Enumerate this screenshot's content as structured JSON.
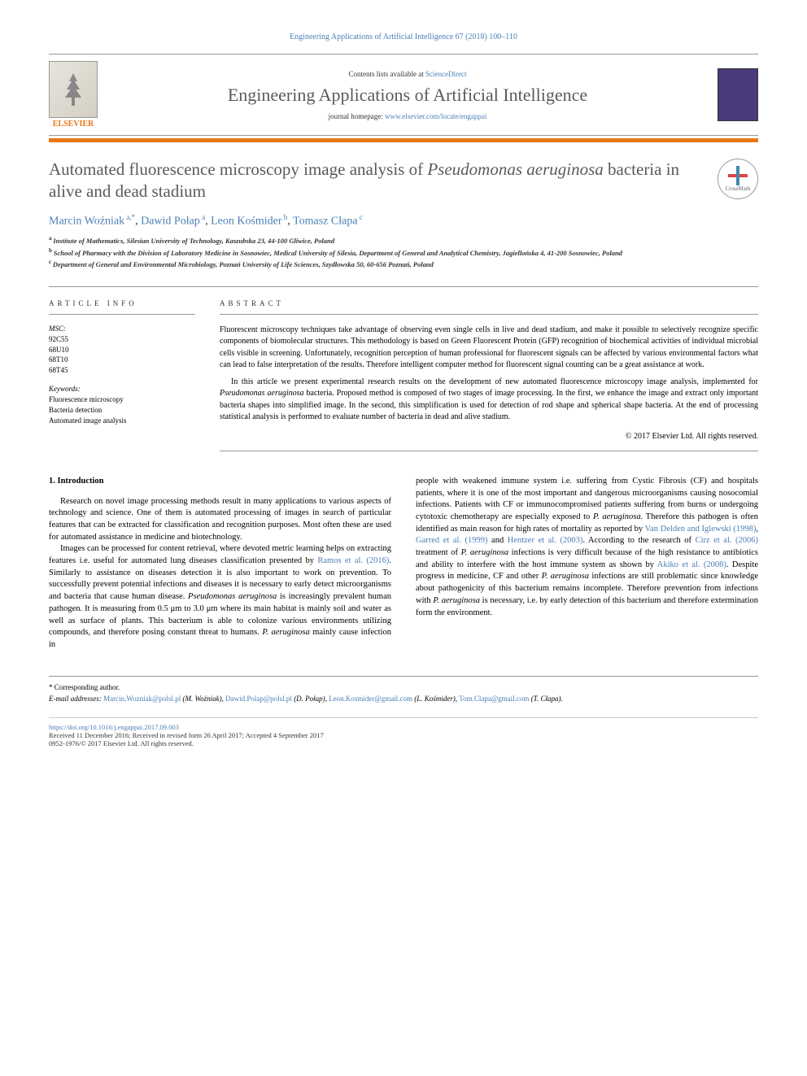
{
  "citation": "Engineering Applications of Artificial Intelligence 67 (2018) 100–110",
  "header": {
    "contents_text": "Contents lists available at ",
    "sciencedirect": "ScienceDirect",
    "journal_name": "Engineering Applications of Artificial Intelligence",
    "homepage_label": "journal homepage: ",
    "homepage_url": "www.elsevier.com/locate/engappai",
    "elsevier_brand": "ELSEVIER",
    "crossmark_label": "CrossMark"
  },
  "title": {
    "pre": "Automated fluorescence microscopy image analysis of ",
    "italic": "Pseudomonas aeruginosa",
    "post": " bacteria in alive and dead stadium"
  },
  "authors": [
    {
      "name": "Marcin Woźniak",
      "sup": "a,*"
    },
    {
      "name": "Dawid Połap",
      "sup": "a"
    },
    {
      "name": "Leon Kośmider",
      "sup": "b"
    },
    {
      "name": "Tomasz Cłapa",
      "sup": "c"
    }
  ],
  "affiliations": [
    {
      "marker": "a",
      "text": "Institute of Mathematics, Silesian University of Technology, Kaszubska 23, 44-100 Gliwice, Poland"
    },
    {
      "marker": "b",
      "text": "School of Pharmacy with the Division of Laboratory Medicine in Sosnowiec, Medical University of Silesia, Department of General and Analytical Chemistry, Jagiellońska 4, 41-200 Sosnowiec, Poland"
    },
    {
      "marker": "c",
      "text": "Department of General and Environmental Microbiology, Poznań University of Life Sciences, Szydłowska 50, 60-656 Poznań, Poland"
    }
  ],
  "article_info": {
    "header": "ARTICLE INFO",
    "msc_label": "MSC:",
    "msc": [
      "92C55",
      "68U10",
      "68T10",
      "68T45"
    ],
    "keywords_label": "Keywords:",
    "keywords": [
      "Fluorescence microscopy",
      "Bacteria detection",
      "Automated image analysis"
    ]
  },
  "abstract": {
    "header": "ABSTRACT",
    "para1": "Fluorescent microscopy techniques take advantage of observing even single cells in live and dead stadium, and make it possible to selectively recognize specific components of biomolecular structures. This methodology is based on Green Fluorescent Protein (GFP) recognition of biochemical activities of individual microbial cells visible in screening. Unfortunately, recognition perception of human professional for fluorescent signals can be affected by various environmental factors what can lead to false interpretation of the results. Therefore intelligent computer method for fluorescent signal counting can be a great assistance at work.",
    "para2_pre": "In this article we present experimental research results on the development of new automated fluorescence microscopy image analysis, implemented for ",
    "para2_italic": "Pseudomonas aeruginosa",
    "para2_post": " bacteria. Proposed method is composed of two stages of image processing. In the first, we enhance the image and extract only important bacteria shapes into simplified image. In the second, this simplification is used for detection of rod shape and spherical shape bacteria. At the end of processing statistical analysis is performed to evaluate number of bacteria in dead and alive stadium.",
    "copyright": "© 2017 Elsevier Ltd. All rights reserved."
  },
  "intro": {
    "section_label": "1. Introduction",
    "col1_p1": "Research on novel image processing methods result in many applications to various aspects of technology and science. One of them is automated processing of images in search of particular features that can be extracted for classification and recognition purposes. Most often these are used for automated assistance in medicine and biotechnology.",
    "col1_p2_pre": "Images can be processed for content retrieval, where devoted metric learning helps on extracting features i.e. useful for automated lung diseases classification presented by ",
    "col1_p2_ref1": "Ramos et al. (2016)",
    "col1_p2_mid1": ". Similarly to assistance on diseases detection it is also important to work on prevention. To successfully prevent potential infections and diseases it is necessary to early detect microorganisms and bacteria that cause human disease. ",
    "col1_p2_italic": "Pseudomonas aeruginosa",
    "col1_p2_mid2": " is increasingly prevalent human pathogen. It is measuring from 0.5 μm to 3.0 μm where its main habitat is mainly soil and water as well as surface of plants. This bacterium is able to colonize various environments utilizing compounds, and therefore posing constant threat to humans. ",
    "col1_p2_italic2": "P. aeruginosa",
    "col1_p2_post": " mainly cause infection in",
    "col2_p1_pre": "people with weakened immune system i.e. suffering from Cystic Fibrosis (CF) and hospitals patients, where it is one of the most important and dangerous microorganisms causing nosocomial infections. Patients with CF or immunocompromised patients suffering from burns or undergoing cytotoxic chemotherapy are especially exposed to ",
    "col2_p1_italic1": "P. aeruginosa",
    "col2_p1_mid1": ". Therefore this pathogen is often identified as main reason for high rates of mortality as reported by ",
    "col2_p1_ref1": "Van Delden and Iglewski (1998)",
    "col2_p1_mid2": ", ",
    "col2_p1_ref2": "Garred et al. (1999)",
    "col2_p1_mid3": " and ",
    "col2_p1_ref3": "Hentzer et al. (2003)",
    "col2_p1_mid4": ". According to the research of ",
    "col2_p1_ref4": "Cirz et al. (2006)",
    "col2_p1_mid5": " treatment of ",
    "col2_p1_italic2": "P. aeruginosa",
    "col2_p1_mid6": " infections is very difficult because of the high resistance to antibiotics and ability to interfere with the host immune system as shown by ",
    "col2_p1_ref5": "Akiko et al. (2008)",
    "col2_p1_mid7": ". Despite progress in medicine, CF and other ",
    "col2_p1_italic3": "P. aeruginosa",
    "col2_p1_mid8": " infections are still problematic since knowledge about pathogenicity of this bacterium remains incomplete. Therefore prevention from infections with ",
    "col2_p1_italic4": "P. aeruginosa",
    "col2_p1_post": " is necessary, i.e. by early detection of this bacterium and therefore extermination form the environment."
  },
  "footer": {
    "corresponding": "* Corresponding author.",
    "emails_label": "E-mail addresses: ",
    "emails": [
      {
        "addr": "Marcin.Wozniak@polsl.pl",
        "name": "(M. Woźniak)"
      },
      {
        "addr": "Dawid.Polap@polsl.pl",
        "name": "(D. Połap)"
      },
      {
        "addr": "Leon.Kosmider@gmail.com",
        "name": "(L. Kośmider)"
      },
      {
        "addr": "Tom.Clapa@gmail.com",
        "name": "(T. Cłapa)"
      }
    ],
    "doi": "https://doi.org/10.1016/j.engappai.2017.09.003",
    "received": "Received 11 December 2016; Received in revised form 26 April 2017; Accepted 4 September 2017",
    "issn": "0952-1976/© 2017 Elsevier Ltd. All rights reserved."
  },
  "colors": {
    "link": "#4a7fb5",
    "orange": "#e67817",
    "title_gray": "#5a5a5a",
    "text": "#000000"
  }
}
